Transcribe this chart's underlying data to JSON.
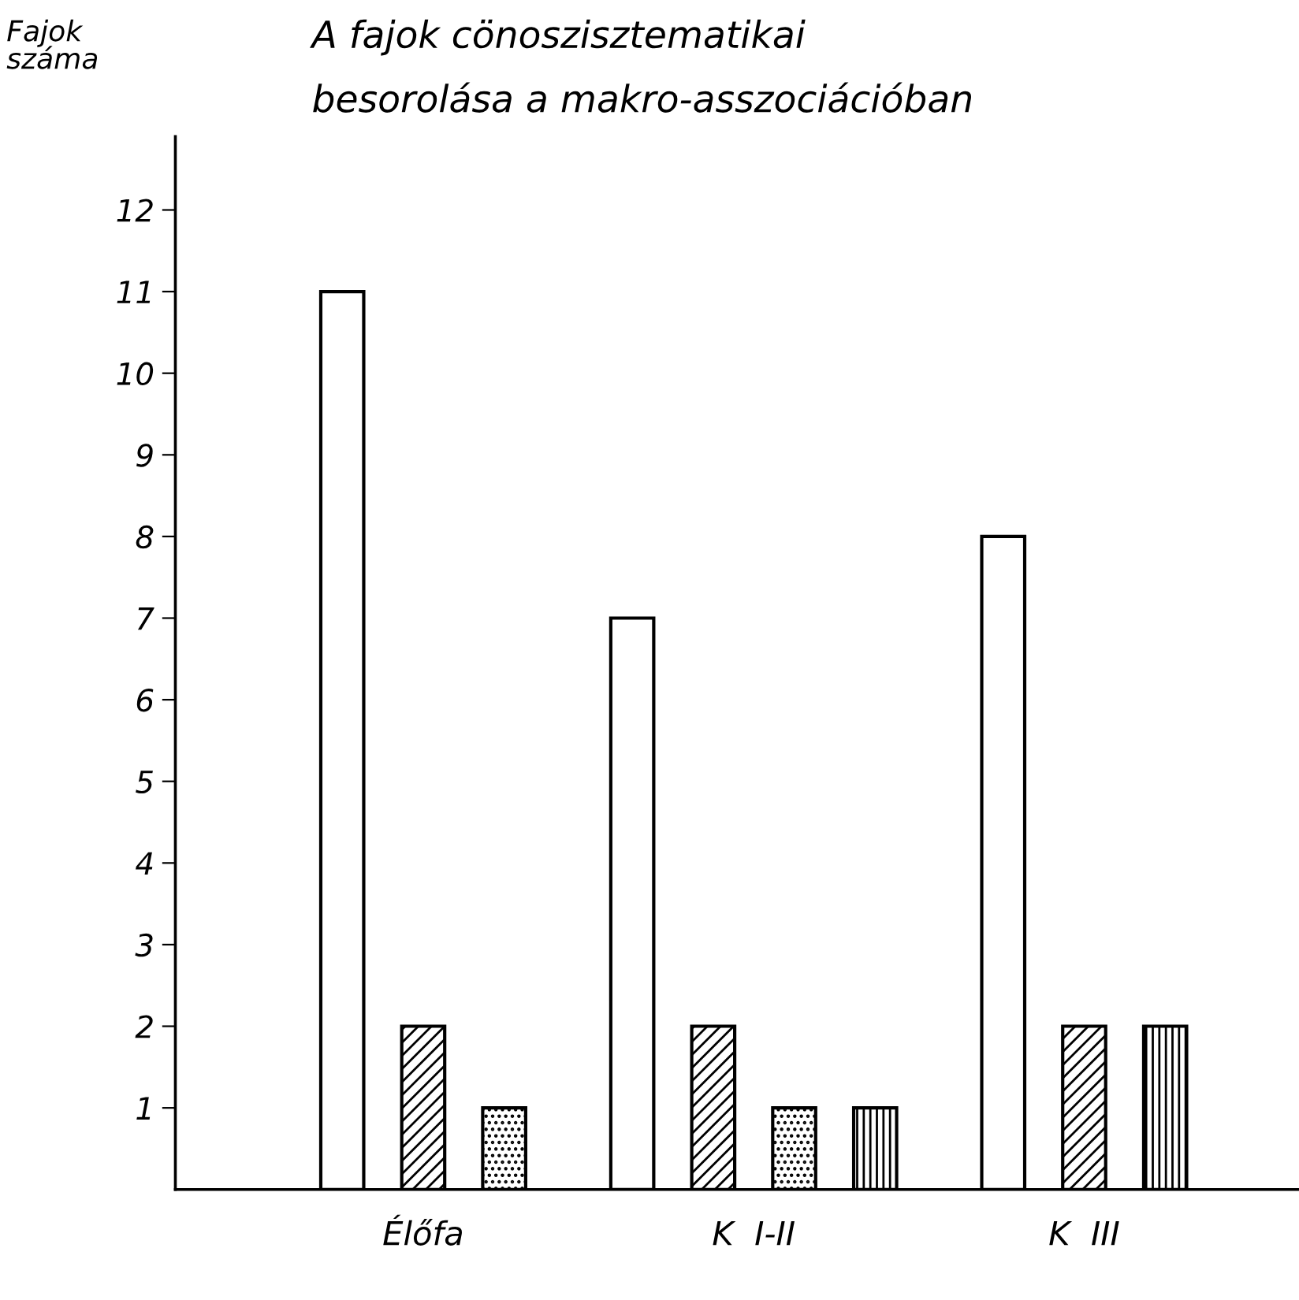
{
  "chart_data": {
    "type": "bar",
    "title": "A fajok cönoszisztematikai\nbesorolása a makro-asszociációban",
    "ylabel": "Fajok\nszáma",
    "categories": [
      "Élőfa",
      "K  I-II",
      "K  III"
    ],
    "series": [
      {
        "color": "#ffffff",
        "values": [
          11,
          7,
          8
        ]
      },
      {
        "color": "#000000",
        "values": [
          2,
          2,
          2
        ]
      },
      {
        "color": "#000000",
        "values": [
          1,
          1,
          null
        ]
      },
      {
        "color": "#000000",
        "values": [
          null,
          1,
          2
        ]
      }
    ],
    "ylim": [
      0,
      12.9
    ],
    "yticks": [
      1,
      2,
      3,
      4,
      5,
      6,
      7,
      8,
      9,
      10,
      11,
      12
    ],
    "grid": false
  }
}
